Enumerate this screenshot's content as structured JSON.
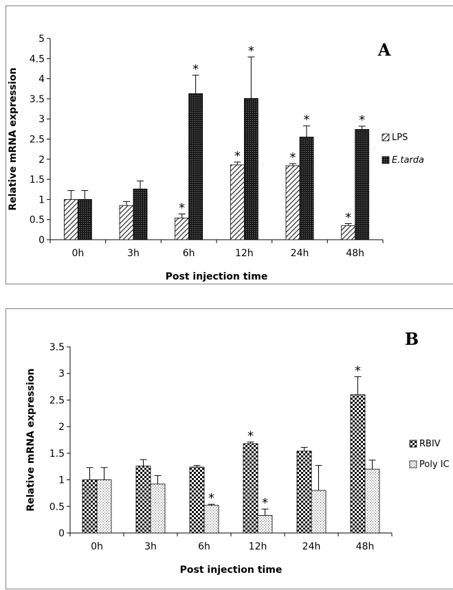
{
  "chart_data": [
    {
      "type": "bar",
      "panel_label": "A",
      "categories": [
        "0h",
        "3h",
        "6h",
        "12h",
        "24h",
        "48h"
      ],
      "xlabel": "Post injection time",
      "ylabel": "Relative mRNA expression",
      "ylim": [
        0,
        5
      ],
      "yticks": [
        "0",
        "0.5",
        "1",
        "1.5",
        "2",
        "2.5",
        "3",
        "3.5",
        "4",
        "4.5",
        "5"
      ],
      "legend_position": "right",
      "series": [
        {
          "name": "LPS",
          "pattern": "diagonal-hatch",
          "legend_italic": false,
          "values": [
            1.0,
            0.85,
            0.54,
            1.86,
            1.84,
            0.35
          ],
          "errors": [
            0.22,
            0.1,
            0.1,
            0.07,
            0.05,
            0.05
          ],
          "significant": [
            false,
            false,
            true,
            true,
            true,
            true
          ]
        },
        {
          "name": "E.tarda",
          "pattern": "dense-dots",
          "legend_italic": true,
          "values": [
            1.0,
            1.26,
            3.63,
            3.51,
            2.55,
            2.74
          ],
          "errors": [
            0.22,
            0.2,
            0.46,
            1.03,
            0.28,
            0.08
          ],
          "significant": [
            false,
            false,
            true,
            true,
            true,
            true
          ]
        }
      ],
      "significance_marker": "*"
    },
    {
      "type": "bar",
      "panel_label": "B",
      "categories": [
        "0h",
        "3h",
        "6h",
        "12h",
        "24h",
        "48h"
      ],
      "xlabel": "Post injection time",
      "ylabel": "Relative mRNA expression",
      "ylim": [
        0,
        3.5
      ],
      "yticks": [
        "0",
        "0.5",
        "1",
        "1.5",
        "2",
        "2.5",
        "3",
        "3.5"
      ],
      "legend_position": "right",
      "series": [
        {
          "name": "RBIV",
          "pattern": "checkerboard",
          "legend_italic": false,
          "values": [
            1.0,
            1.26,
            1.24,
            1.68,
            1.54,
            2.6
          ],
          "errors": [
            0.23,
            0.12,
            0.03,
            0.03,
            0.07,
            0.34
          ],
          "significant": [
            false,
            false,
            false,
            true,
            false,
            true
          ]
        },
        {
          "name": "Poly IC",
          "pattern": "sparse-dots",
          "legend_italic": false,
          "values": [
            1.0,
            0.92,
            0.52,
            0.33,
            0.8,
            1.2
          ],
          "errors": [
            0.23,
            0.16,
            0.02,
            0.12,
            0.47,
            0.17
          ],
          "significant": [
            false,
            false,
            true,
            true,
            false,
            false
          ]
        }
      ],
      "significance_marker": "*"
    }
  ]
}
